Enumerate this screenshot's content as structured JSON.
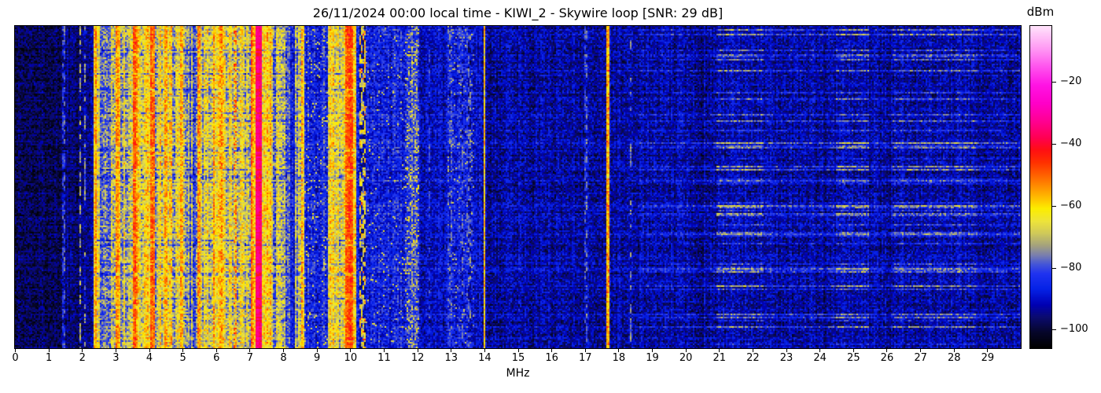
{
  "chart_data": {
    "type": "heatmap",
    "subtype": "spectrogram-waterfall",
    "title": "26/11/2024 00:00 local time - KIWI_2 - Skywire loop [SNR: 29 dB]",
    "xlabel": "MHz",
    "x_range": [
      0,
      30
    ],
    "x_ticks": [
      0,
      1,
      2,
      3,
      4,
      5,
      6,
      7,
      8,
      9,
      10,
      11,
      12,
      13,
      14,
      15,
      16,
      17,
      18,
      19,
      20,
      21,
      22,
      23,
      24,
      25,
      26,
      27,
      28,
      29
    ],
    "ylabel": "",
    "grid": false,
    "colorbar": {
      "label": "dBm",
      "range": [
        -106,
        -2
      ],
      "ticks": [
        {
          "v": -20,
          "label": "−20"
        },
        {
          "v": -40,
          "label": "−40"
        },
        {
          "v": -60,
          "label": "−60"
        },
        {
          "v": -80,
          "label": "−80"
        },
        {
          "v": -100,
          "label": "−100"
        }
      ]
    },
    "colormap": {
      "stops": [
        [
          -106,
          "#000000"
        ],
        [
          -101,
          "#06062a"
        ],
        [
          -96,
          "#0b0b70"
        ],
        [
          -92,
          "#0000b4"
        ],
        [
          -87,
          "#0522e6"
        ],
        [
          -82,
          "#2033f0"
        ],
        [
          -79,
          "#4455d8"
        ],
        [
          -76,
          "#7a7fae"
        ],
        [
          -73,
          "#a3a17e"
        ],
        [
          -69,
          "#cfc95a"
        ],
        [
          -65,
          "#eee43a"
        ],
        [
          -61,
          "#fced00"
        ],
        [
          -58,
          "#ffc400"
        ],
        [
          -54,
          "#ff9000"
        ],
        [
          -50,
          "#ff5f00"
        ],
        [
          -46,
          "#ff3000"
        ],
        [
          -42,
          "#ff0f13"
        ],
        [
          -38,
          "#ff0053"
        ],
        [
          -33,
          "#ff008f"
        ],
        [
          -27,
          "#ff00c8"
        ],
        [
          -21,
          "#ff14e4"
        ],
        [
          -15,
          "#ff55ee"
        ],
        [
          -9,
          "#ff9cf4"
        ],
        [
          -2,
          "#ffe3fb"
        ]
      ]
    },
    "background_level": {
      "base": -93,
      "cellv": 7
    },
    "bands": [
      {
        "f0": 0.0,
        "f1": 1.5,
        "base": -98,
        "colv": 2,
        "cellv": 6
      },
      {
        "f0": 1.5,
        "f1": 2.33,
        "base": -95,
        "colv": 3,
        "cellv": 6
      },
      {
        "f0": 2.33,
        "f1": 2.52,
        "base": -62,
        "colv": 6,
        "cellv": 8
      },
      {
        "f0": 2.52,
        "f1": 3.02,
        "base": -71,
        "colv": 10,
        "cellv": 9
      },
      {
        "f0": 3.02,
        "f1": 3.12,
        "base": -54,
        "colv": 4,
        "cellv": 7
      },
      {
        "f0": 3.12,
        "f1": 3.5,
        "base": -69,
        "colv": 9,
        "cellv": 9
      },
      {
        "f0": 3.5,
        "f1": 3.66,
        "base": -51,
        "colv": 4,
        "cellv": 7
      },
      {
        "f0": 3.66,
        "f1": 4.02,
        "base": -66,
        "colv": 9,
        "cellv": 9
      },
      {
        "f0": 4.02,
        "f1": 4.16,
        "base": -50,
        "colv": 4,
        "cellv": 7
      },
      {
        "f0": 4.16,
        "f1": 4.46,
        "base": -67,
        "colv": 9,
        "cellv": 9
      },
      {
        "f0": 4.46,
        "f1": 4.56,
        "base": -53,
        "colv": 4,
        "cellv": 7
      },
      {
        "f0": 4.56,
        "f1": 4.92,
        "base": -66,
        "colv": 9,
        "cellv": 9
      },
      {
        "f0": 4.92,
        "f1": 5.0,
        "base": -56,
        "colv": 5,
        "cellv": 7
      },
      {
        "f0": 5.0,
        "f1": 5.44,
        "base": -73,
        "colv": 10,
        "cellv": 9
      },
      {
        "f0": 5.44,
        "f1": 5.54,
        "base": -55,
        "colv": 5,
        "cellv": 7
      },
      {
        "f0": 5.54,
        "f1": 5.9,
        "base": -67,
        "colv": 9,
        "cellv": 9
      },
      {
        "f0": 5.9,
        "f1": 6.26,
        "base": -59,
        "colv": 7,
        "cellv": 8
      },
      {
        "f0": 6.26,
        "f1": 6.5,
        "base": -69,
        "colv": 9,
        "cellv": 9
      },
      {
        "f0": 6.5,
        "f1": 6.62,
        "base": -60,
        "colv": 6,
        "cellv": 10,
        "spikeP": 0.25,
        "spikeL": -46
      },
      {
        "f0": 6.62,
        "f1": 7.02,
        "base": -66,
        "colv": 8,
        "cellv": 9
      },
      {
        "f0": 7.02,
        "f1": 7.12,
        "base": -52,
        "colv": 4,
        "cellv": 7
      },
      {
        "f0": 7.12,
        "f1": 7.2,
        "base": -63,
        "colv": 6,
        "cellv": 8
      },
      {
        "f0": 7.2,
        "f1": 7.37,
        "base": -34,
        "colv": 2,
        "cellv": 3
      },
      {
        "f0": 7.37,
        "f1": 7.66,
        "base": -61,
        "colv": 6,
        "cellv": 8
      },
      {
        "f0": 7.66,
        "f1": 8.12,
        "base": -72,
        "colv": 10,
        "cellv": 10
      },
      {
        "f0": 8.12,
        "f1": 8.36,
        "base": -83,
        "colv": 6,
        "cellv": 8
      },
      {
        "f0": 8.36,
        "f1": 8.56,
        "base": -69,
        "colv": 9,
        "cellv": 9
      },
      {
        "f0": 8.56,
        "f1": 8.64,
        "base": -61,
        "colv": 5,
        "cellv": 8
      },
      {
        "f0": 8.64,
        "f1": 9.32,
        "base": -85,
        "colv": 4,
        "cellv": 8,
        "spikeP": 0.05,
        "spikeL": -66
      },
      {
        "f0": 9.32,
        "f1": 9.6,
        "base": -64,
        "colv": 7,
        "cellv": 8
      },
      {
        "f0": 9.6,
        "f1": 9.86,
        "base": -67,
        "colv": 9,
        "cellv": 9
      },
      {
        "f0": 9.86,
        "f1": 10.08,
        "base": -49,
        "colv": 3,
        "cellv": 6
      },
      {
        "f0": 10.08,
        "f1": 10.2,
        "base": -63,
        "colv": 5,
        "cellv": 8
      },
      {
        "f0": 10.2,
        "f1": 10.29,
        "base": -84,
        "colv": 4,
        "cellv": 7
      },
      {
        "f0": 10.29,
        "f1": 10.46,
        "base": -66,
        "colv": 5,
        "cellv": 9,
        "dash": 0.45,
        "spikeP": 0.06,
        "spikeL": -46
      },
      {
        "f0": 10.46,
        "f1": 11.62,
        "base": -87,
        "colv": 3,
        "cellv": 8,
        "spikeP": 0.025,
        "spikeL": -67
      },
      {
        "f0": 11.62,
        "f1": 12.06,
        "base": -82,
        "colv": 5,
        "cellv": 9,
        "spikeP": 0.12,
        "spikeL": -63
      },
      {
        "f0": 12.06,
        "f1": 12.92,
        "base": -90,
        "colv": 3,
        "cellv": 7
      },
      {
        "f0": 12.92,
        "f1": 13.7,
        "base": -87,
        "colv": 4,
        "cellv": 8,
        "spikeP": 0.06,
        "spikeL": -72
      },
      {
        "f0": 13.7,
        "f1": 13.98,
        "base": -91,
        "colv": 3,
        "cellv": 7
      },
      {
        "f0": 13.98,
        "f1": 14.05,
        "base": -59,
        "colv": 2,
        "cellv": 5
      },
      {
        "f0": 14.05,
        "f1": 17.64,
        "base": -93,
        "colv": 2.5,
        "cellv": 7
      },
      {
        "f0": 17.64,
        "f1": 17.74,
        "base": -57,
        "colv": 2,
        "cellv": 5,
        "spikeP": 0.1,
        "spikeL": -48
      },
      {
        "f0": 17.74,
        "f1": 18.6,
        "base": -93,
        "colv": 2.5,
        "cellv": 7
      },
      {
        "f0": 18.6,
        "f1": 30.0,
        "base": -94,
        "colv": 2.5,
        "cellv": 7
      },
      {
        "f0": 1.43,
        "f1": 1.48,
        "base": -80,
        "colv": 2,
        "cellv": 5,
        "dash": 0.5
      },
      {
        "f0": 1.94,
        "f1": 1.99,
        "base": -70,
        "colv": 2,
        "cellv": 6,
        "dash": 0.55
      },
      {
        "f0": 2.08,
        "f1": 2.13,
        "base": -73,
        "colv": 2,
        "cellv": 6,
        "dash": 0.6
      },
      {
        "f0": 2.37,
        "f1": 2.43,
        "base": -52,
        "colv": 2,
        "cellv": 6
      },
      {
        "f0": 12.33,
        "f1": 12.38,
        "base": -82,
        "colv": 2,
        "cellv": 6,
        "dash": 0.55
      },
      {
        "f0": 12.95,
        "f1": 13.0,
        "base": -79,
        "colv": 2,
        "cellv": 6,
        "dash": 0.5
      },
      {
        "f0": 13.32,
        "f1": 13.38,
        "base": -79,
        "colv": 2,
        "cellv": 6,
        "dash": 0.5
      },
      {
        "f0": 13.53,
        "f1": 13.59,
        "base": -78,
        "colv": 2,
        "cellv": 6,
        "dash": 0.45
      },
      {
        "f0": 15.0,
        "f1": 15.045,
        "base": -86,
        "colv": 2,
        "cellv": 6,
        "dash": 0.5
      },
      {
        "f0": 17.0,
        "f1": 17.06,
        "base": -80,
        "colv": 2,
        "cellv": 6,
        "dash": 0.45
      },
      {
        "f0": 18.33,
        "f1": 18.38,
        "base": -77,
        "colv": 2,
        "cellv": 6,
        "dash": 0.55
      },
      {
        "f0": 20.42,
        "f1": 20.55,
        "base": -97,
        "colv": 2,
        "cellv": 6
      },
      {
        "f0": 24.1,
        "f1": 24.22,
        "base": -97,
        "colv": 2,
        "cellv": 6
      },
      {
        "f0": 26.03,
        "f1": 26.14,
        "base": -97,
        "colv": 2,
        "cellv": 6
      },
      {
        "f0": 28.6,
        "f1": 28.74,
        "base": -97,
        "colv": 2,
        "cellv": 6
      }
    ],
    "row_streaks": {
      "boost_prob": 0.24,
      "boost_min": 6,
      "boost_max": 22,
      "dim_prob": 0.18,
      "dim_min": 3,
      "dim_max": 11,
      "jitter": 2,
      "dim_applies_above_base": -73,
      "clusters": [
        {
          "f0": 8.6,
          "f1": 10.5,
          "w": 0.12
        },
        {
          "f0": 10.5,
          "f1": 18.6,
          "w": 0.15
        },
        {
          "f0": 18.6,
          "f1": 30,
          "w": 0.4
        },
        {
          "f0": 20.9,
          "f1": 22.35,
          "w": 1.0
        },
        {
          "f0": 22.35,
          "f1": 24.5,
          "w": 0.55
        },
        {
          "f0": 24.5,
          "f1": 25.45,
          "w": 1.0
        },
        {
          "f0": 26.2,
          "f1": 28.7,
          "w": 0.9
        },
        {
          "f0": 28.7,
          "f1": 30,
          "w": 0.6
        }
      ]
    }
  }
}
